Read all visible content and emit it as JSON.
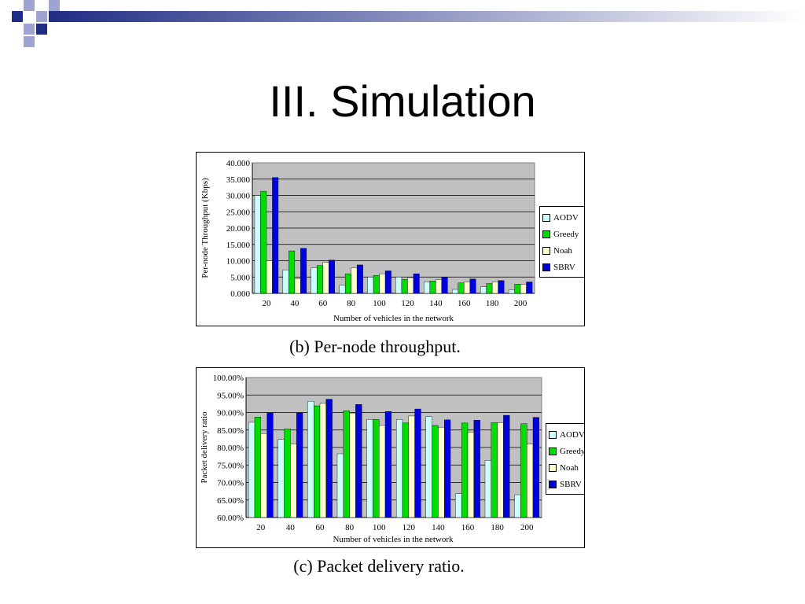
{
  "slide": {
    "title": "III. Simulation",
    "caption_b": "(b) Per-node throughput.",
    "caption_c": "(c) Packet delivery ratio."
  },
  "decoration": {
    "colors": [
      "#1f2d84",
      "#9ea3cf"
    ]
  },
  "chart_data": [
    {
      "type": "bar",
      "title": "",
      "xlabel": "Number of vehicles in the network",
      "ylabel": "Per-node Throughput (Kbps)",
      "categories": [
        "20",
        "40",
        "60",
        "80",
        "100",
        "120",
        "140",
        "160",
        "180",
        "200"
      ],
      "yticks": [
        "40.000",
        "35.000",
        "30.000",
        "25.000",
        "20.000",
        "15.000",
        "10.000",
        "5.000",
        "0.000"
      ],
      "ylim": [
        0,
        40
      ],
      "grid": true,
      "legend_position": "right",
      "plot_bg": "#c0c0c0",
      "series": [
        {
          "name": "AODV",
          "color": "#ccffff",
          "values": [
            30.0,
            7.2,
            7.8,
            2.5,
            5.0,
            5.0,
            3.5,
            1.2,
            2.0,
            1.0
          ]
        },
        {
          "name": "Greedy",
          "color": "#00dd00",
          "values": [
            31.3,
            13.0,
            8.5,
            6.0,
            5.5,
            4.3,
            3.8,
            3.2,
            3.0,
            2.8
          ]
        },
        {
          "name": "Noah",
          "color": "#ffffcc",
          "values": [
            10.0,
            4.5,
            9.5,
            7.8,
            6.0,
            4.8,
            4.2,
            3.5,
            3.5,
            2.8
          ]
        },
        {
          "name": "SBRV",
          "color": "#0000dd",
          "values": [
            35.5,
            13.8,
            10.2,
            8.7,
            6.9,
            6.0,
            5.0,
            4.4,
            3.9,
            3.5
          ]
        }
      ]
    },
    {
      "type": "bar",
      "title": "",
      "xlabel": "Number of vehicles in the network",
      "ylabel": "Packet delivery ratio",
      "categories": [
        "20",
        "40",
        "60",
        "80",
        "100",
        "120",
        "140",
        "160",
        "180",
        "200"
      ],
      "yticks": [
        "100.00%",
        "95.00%",
        "90.00%",
        "85.00%",
        "80.00%",
        "75.00%",
        "70.00%",
        "65.00%",
        "60.00%"
      ],
      "ylim": [
        60,
        100
      ],
      "grid": true,
      "legend_position": "right",
      "plot_bg": "#c0c0c0",
      "series": [
        {
          "name": "AODV",
          "color": "#ccffff",
          "values": [
            87.2,
            82.3,
            93.2,
            78.2,
            88.0,
            88.0,
            88.8,
            66.8,
            76.3,
            66.5
          ]
        },
        {
          "name": "Greedy",
          "color": "#00dd00",
          "values": [
            88.7,
            85.3,
            91.9,
            90.5,
            88.0,
            87.0,
            86.3,
            87.0,
            87.1,
            86.8
          ]
        },
        {
          "name": "Noah",
          "color": "#ffffcc",
          "values": [
            84.0,
            81.0,
            92.6,
            89.8,
            86.3,
            89.0,
            85.8,
            84.3,
            87.1,
            81.0
          ]
        },
        {
          "name": "SBRV",
          "color": "#0000dd",
          "values": [
            89.9,
            89.9,
            93.8,
            92.3,
            90.3,
            91.0,
            87.9,
            87.8,
            89.2,
            88.6
          ]
        }
      ]
    }
  ]
}
